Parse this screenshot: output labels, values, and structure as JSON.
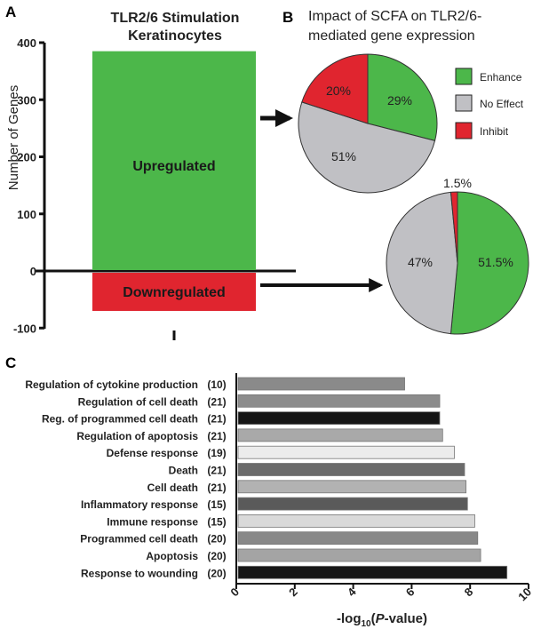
{
  "panel_labels": {
    "a": "A",
    "b": "B",
    "c": "C"
  },
  "colors": {
    "up": "#4cb74a",
    "down": "#e0252f",
    "enhance": "#4cb74a",
    "no_effect": "#c0c0c4",
    "inhibit": "#e0252f",
    "axis": "#111111"
  },
  "chart_data": [
    {
      "id": "panel-a",
      "type": "bar",
      "title_line1": "TLR2/6 Stimulation",
      "title_line2": "Keratinocytes",
      "ylabel": "Number of Genes",
      "ylim": [
        -100,
        400
      ],
      "yticks": [
        "400",
        "300",
        "200",
        "100",
        "0",
        "-100"
      ],
      "series": [
        {
          "name": "Upregulated",
          "value": 385
        },
        {
          "name": "Downregulated",
          "value": -70
        }
      ]
    },
    {
      "id": "panel-b-top",
      "type": "pie",
      "title_line1": "Impact of SCFA on TLR2/6-",
      "title_line2": "mediated gene expression",
      "source": "Upregulated",
      "slices": [
        {
          "name": "Enhance",
          "value": 29,
          "label": "29%"
        },
        {
          "name": "No Effect",
          "value": 51,
          "label": "51%"
        },
        {
          "name": "Inhibit",
          "value": 20,
          "label": "20%"
        }
      ],
      "legend": [
        {
          "name": "Enhance"
        },
        {
          "name": "No Effect"
        },
        {
          "name": "Inhibit"
        }
      ]
    },
    {
      "id": "panel-b-bottom",
      "type": "pie",
      "source": "Downregulated",
      "slices": [
        {
          "name": "Enhance",
          "value": 51.5,
          "label": "51.5%"
        },
        {
          "name": "No Effect",
          "value": 47,
          "label": "47%"
        },
        {
          "name": "Inhibit",
          "value": 1.5,
          "label": "1.5%"
        }
      ]
    },
    {
      "id": "panel-c",
      "type": "bar",
      "orientation": "horizontal",
      "xlabel_prefix": "-log",
      "xlabel_sub": "10",
      "xlabel_open": "(",
      "xlabel_italic": "P",
      "xlabel_suffix": "-value)",
      "xlim": [
        0,
        10
      ],
      "xticks": [
        "0",
        "2",
        "4",
        "6",
        "8",
        "10"
      ],
      "terms": [
        {
          "name": "Regulation of cytokine production",
          "count": "(10)",
          "value": 5.7,
          "color": "#8a8a8a"
        },
        {
          "name": "Regulation of cell death",
          "count": "(21)",
          "value": 6.9,
          "color": "#8c8c8c"
        },
        {
          "name": "Reg. of programmed cell death",
          "count": "(21)",
          "value": 6.9,
          "color": "#151515"
        },
        {
          "name": "Regulation of apoptosis",
          "count": "(21)",
          "value": 7.0,
          "color": "#a9a9a9"
        },
        {
          "name": "Defense response",
          "count": "(19)",
          "value": 7.4,
          "color": "#ececec"
        },
        {
          "name": "Death",
          "count": "(21)",
          "value": 7.75,
          "color": "#6b6b6b"
        },
        {
          "name": "Cell death",
          "count": "(21)",
          "value": 7.8,
          "color": "#b2b2b2"
        },
        {
          "name": "Inflammatory response",
          "count": "(15)",
          "value": 7.85,
          "color": "#5a5a5a"
        },
        {
          "name": "Immune response",
          "count": "(15)",
          "value": 8.1,
          "color": "#d9d9d9"
        },
        {
          "name": "Programmed cell death",
          "count": "(20)",
          "value": 8.2,
          "color": "#888888"
        },
        {
          "name": "Apoptosis",
          "count": "(20)",
          "value": 8.3,
          "color": "#a4a4a4"
        },
        {
          "name": "Response to wounding",
          "count": "(20)",
          "value": 9.2,
          "color": "#161616"
        }
      ]
    }
  ]
}
